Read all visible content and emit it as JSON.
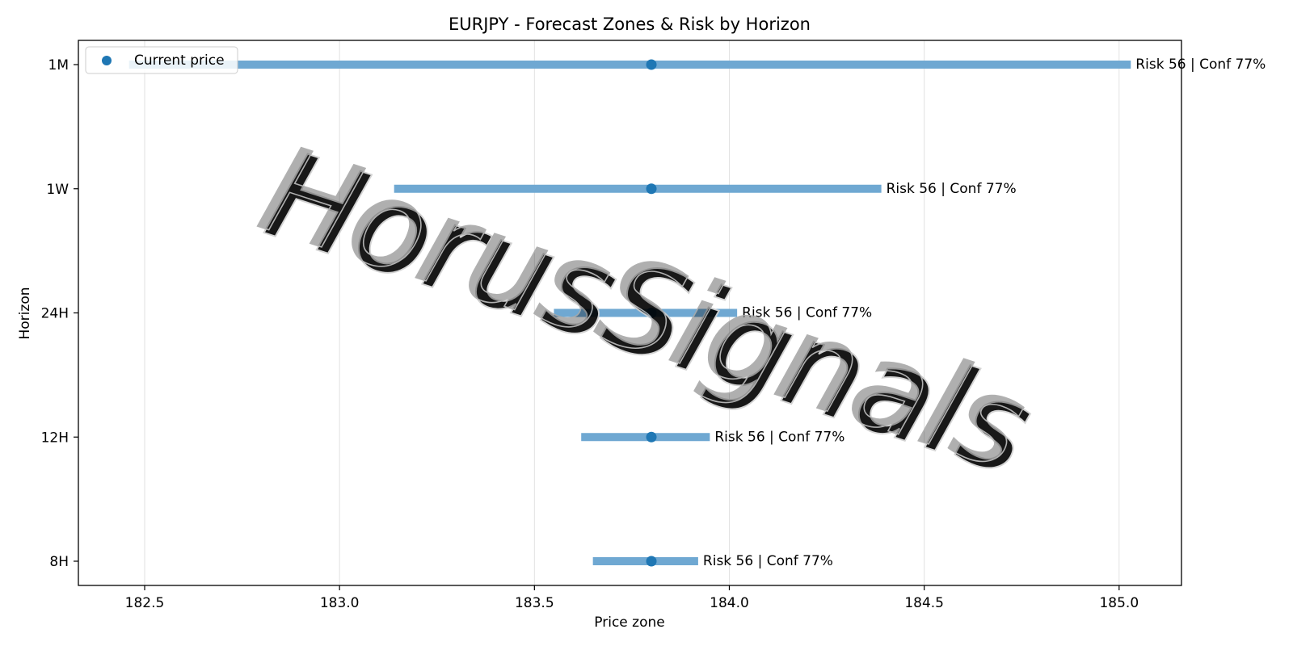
{
  "chart_data": {
    "type": "range",
    "title": "EURJPY - Forecast Zones & Risk by Horizon",
    "xlabel": "Price zone",
    "ylabel": "Horizon",
    "xlim": [
      182.33,
      185.16
    ],
    "xticks": [
      182.5,
      183.0,
      183.5,
      184.0,
      184.5,
      185.0
    ],
    "xtick_labels": [
      "182.5",
      "183.0",
      "183.5",
      "184.0",
      "184.5",
      "185.0"
    ],
    "grid": "vertical",
    "horizons": [
      {
        "label": "8H",
        "low": 183.65,
        "high": 183.92,
        "current": 183.8,
        "annotation": "Risk 56 | Conf 77%"
      },
      {
        "label": "12H",
        "low": 183.62,
        "high": 183.95,
        "current": 183.8,
        "annotation": "Risk 56 | Conf 77%"
      },
      {
        "label": "24H",
        "low": 183.55,
        "high": 184.02,
        "current": 183.8,
        "annotation": "Risk 56 | Conf 77%"
      },
      {
        "label": "1W",
        "low": 183.14,
        "high": 184.39,
        "current": 183.8,
        "annotation": "Risk 56 | Conf 77%"
      },
      {
        "label": "1M",
        "low": 182.46,
        "high": 185.03,
        "current": 183.8,
        "annotation": "Risk 56 | Conf 77%"
      }
    ],
    "legend": {
      "label": "Current price",
      "position": "top-left"
    },
    "colors": {
      "zone": "#6fa8d2",
      "point": "#1f77b4",
      "grid": "#e2e2e2"
    }
  },
  "watermark": "HorusSignals"
}
